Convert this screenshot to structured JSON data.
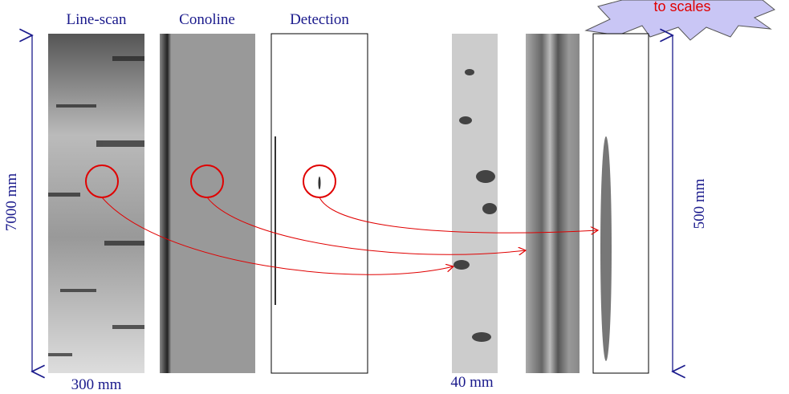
{
  "panels": [
    "Line-scan",
    "Conoline",
    "Detection"
  ],
  "dimensions": {
    "left_height": "7000 mm",
    "left_width": "300 mm",
    "right_width": "40 mm",
    "right_height": "500 mm"
  },
  "callout": "to scales"
}
